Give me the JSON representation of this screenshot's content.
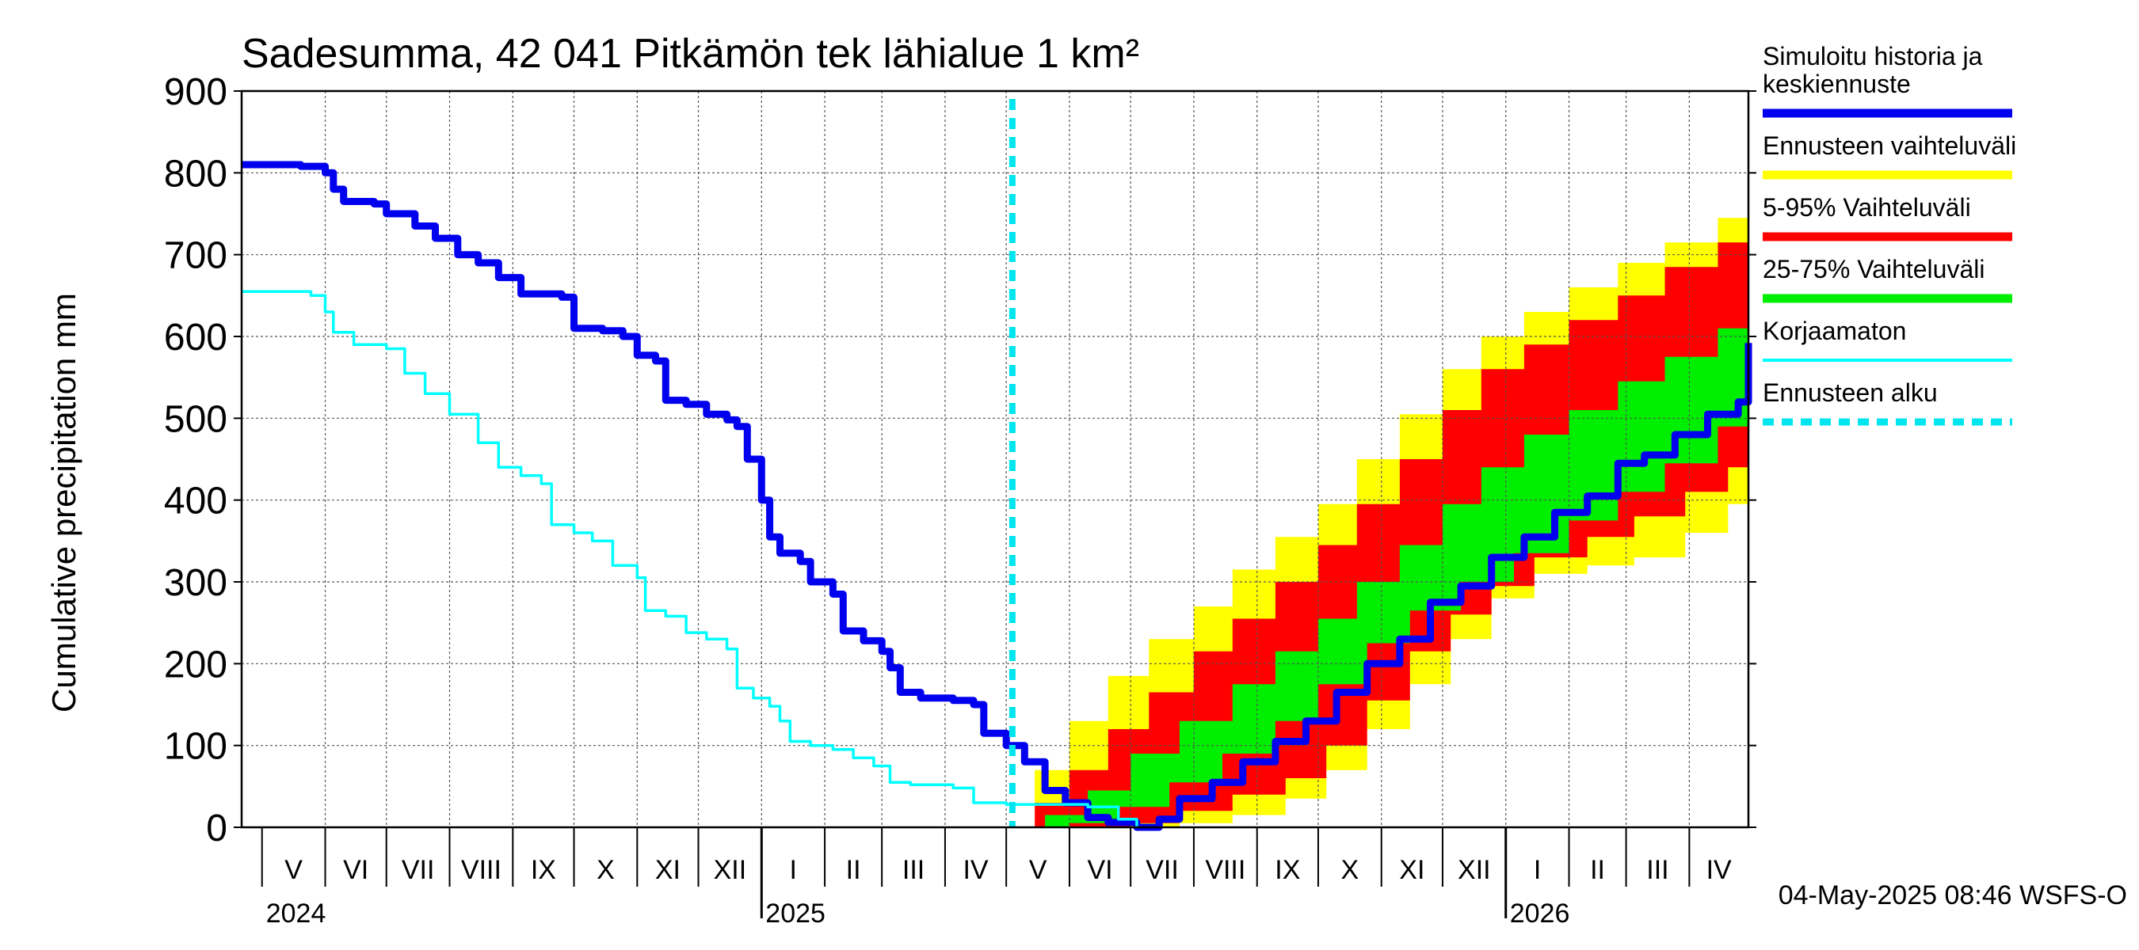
{
  "chart_data": {
    "type": "area",
    "title": "Sadesumma, 42 041 Pitkämön tek lähialue 1 km²",
    "ylabel": "Cumulative precipitation   mm",
    "xlabel": "",
    "ylim": [
      0,
      900
    ],
    "yticks": [
      0,
      100,
      200,
      300,
      400,
      500,
      600,
      700,
      800,
      900
    ],
    "grid": true,
    "legend_position": "right",
    "x_start": "2024-04-21",
    "x_end": "2026-04-30",
    "forecast_start": "2025-05-04",
    "months": [
      {
        "label": "V",
        "start": "2024-05-01",
        "end": "2024-06-01"
      },
      {
        "label": "VI",
        "start": "2024-06-01",
        "end": "2024-07-01"
      },
      {
        "label": "VII",
        "start": "2024-07-01",
        "end": "2024-08-01"
      },
      {
        "label": "VIII",
        "start": "2024-08-01",
        "end": "2024-09-01"
      },
      {
        "label": "IX",
        "start": "2024-09-01",
        "end": "2024-10-01"
      },
      {
        "label": "X",
        "start": "2024-10-01",
        "end": "2024-11-01"
      },
      {
        "label": "XI",
        "start": "2024-11-01",
        "end": "2024-12-01"
      },
      {
        "label": "XII",
        "start": "2024-12-01",
        "end": "2025-01-01"
      },
      {
        "label": "I",
        "start": "2025-01-01",
        "end": "2025-02-01"
      },
      {
        "label": "II",
        "start": "2025-02-01",
        "end": "2025-03-01"
      },
      {
        "label": "III",
        "start": "2025-03-01",
        "end": "2025-04-01"
      },
      {
        "label": "IV",
        "start": "2025-04-01",
        "end": "2025-05-01"
      },
      {
        "label": "V",
        "start": "2025-05-01",
        "end": "2025-06-01"
      },
      {
        "label": "VI",
        "start": "2025-06-01",
        "end": "2025-07-01"
      },
      {
        "label": "VII",
        "start": "2025-07-01",
        "end": "2025-08-01"
      },
      {
        "label": "VIII",
        "start": "2025-08-01",
        "end": "2025-09-01"
      },
      {
        "label": "IX",
        "start": "2025-09-01",
        "end": "2025-10-01"
      },
      {
        "label": "X",
        "start": "2025-10-01",
        "end": "2025-11-01"
      },
      {
        "label": "XI",
        "start": "2025-11-01",
        "end": "2025-12-01"
      },
      {
        "label": "XII",
        "start": "2025-12-01",
        "end": "2026-01-01"
      },
      {
        "label": "I",
        "start": "2026-01-01",
        "end": "2026-02-01"
      },
      {
        "label": "II",
        "start": "2026-02-01",
        "end": "2026-03-01"
      },
      {
        "label": "III",
        "start": "2026-03-01",
        "end": "2026-04-01"
      },
      {
        "label": "IV",
        "start": "2026-04-01",
        "end": "2026-05-01"
      }
    ],
    "years": [
      {
        "label": "2024",
        "date": "2024-05-01"
      },
      {
        "label": "2025",
        "date": "2025-01-01"
      },
      {
        "label": "2026",
        "date": "2026-01-01"
      }
    ],
    "timestamp": "04-May-2025 08:46 WSFS-O",
    "series": [
      {
        "name": "Simuloitu historia ja keskiennuste",
        "color": "#0000ee",
        "points": [
          [
            "2024-04-21",
            810
          ],
          [
            "2024-05-20",
            808
          ],
          [
            "2024-06-01",
            800
          ],
          [
            "2024-06-05",
            780
          ],
          [
            "2024-06-10",
            765
          ],
          [
            "2024-06-25",
            762
          ],
          [
            "2024-07-01",
            750
          ],
          [
            "2024-07-15",
            735
          ],
          [
            "2024-07-25",
            720
          ],
          [
            "2024-08-05",
            700
          ],
          [
            "2024-08-15",
            690
          ],
          [
            "2024-08-25",
            672
          ],
          [
            "2024-09-05",
            652
          ],
          [
            "2024-09-25",
            648
          ],
          [
            "2024-10-01",
            610
          ],
          [
            "2024-10-15",
            607
          ],
          [
            "2024-10-25",
            600
          ],
          [
            "2024-11-01",
            577
          ],
          [
            "2024-11-10",
            570
          ],
          [
            "2024-11-15",
            522
          ],
          [
            "2024-11-25",
            517
          ],
          [
            "2024-12-05",
            505
          ],
          [
            "2024-12-15",
            498
          ],
          [
            "2024-12-20",
            490
          ],
          [
            "2024-12-25",
            450
          ],
          [
            "2025-01-01",
            400
          ],
          [
            "2025-01-05",
            355
          ],
          [
            "2025-01-10",
            335
          ],
          [
            "2025-01-20",
            325
          ],
          [
            "2025-01-25",
            300
          ],
          [
            "2025-02-05",
            285
          ],
          [
            "2025-02-10",
            240
          ],
          [
            "2025-02-20",
            228
          ],
          [
            "2025-03-01",
            215
          ],
          [
            "2025-03-05",
            195
          ],
          [
            "2025-03-10",
            165
          ],
          [
            "2025-03-20",
            158
          ],
          [
            "2025-04-05",
            155
          ],
          [
            "2025-04-15",
            150
          ],
          [
            "2025-04-20",
            115
          ],
          [
            "2025-05-01",
            100
          ],
          [
            "2025-05-10",
            80
          ],
          [
            "2025-05-20",
            45
          ],
          [
            "2025-05-30",
            30
          ],
          [
            "2025-06-10",
            12
          ],
          [
            "2025-06-20",
            6
          ],
          [
            "2025-07-04",
            0
          ],
          [
            "2025-07-15",
            10
          ],
          [
            "2025-07-25",
            35
          ],
          [
            "2025-08-10",
            55
          ],
          [
            "2025-08-25",
            80
          ],
          [
            "2025-09-10",
            105
          ],
          [
            "2025-09-25",
            130
          ],
          [
            "2025-10-10",
            165
          ],
          [
            "2025-10-25",
            200
          ],
          [
            "2025-11-10",
            230
          ],
          [
            "2025-11-25",
            275
          ],
          [
            "2025-12-10",
            295
          ],
          [
            "2025-12-25",
            330
          ],
          [
            "2026-01-10",
            355
          ],
          [
            "2026-01-25",
            385
          ],
          [
            "2026-02-10",
            405
          ],
          [
            "2026-02-25",
            445
          ],
          [
            "2026-03-10",
            455
          ],
          [
            "2026-03-25",
            480
          ],
          [
            "2026-04-10",
            505
          ],
          [
            "2026-04-25",
            520
          ],
          [
            "2026-05-10",
            530
          ],
          [
            "2026-05-25",
            545
          ],
          [
            "2026-06-10",
            565
          ],
          [
            "2026-06-25",
            580
          ],
          [
            "2026-07-10",
            592
          ]
        ]
      },
      {
        "name": "Korjaamaton",
        "color": "#00ffff",
        "points": [
          [
            "2024-04-21",
            655
          ],
          [
            "2024-05-25",
            650
          ],
          [
            "2024-06-01",
            630
          ],
          [
            "2024-06-05",
            605
          ],
          [
            "2024-06-15",
            590
          ],
          [
            "2024-07-01",
            585
          ],
          [
            "2024-07-10",
            555
          ],
          [
            "2024-07-20",
            530
          ],
          [
            "2024-08-01",
            505
          ],
          [
            "2024-08-15",
            470
          ],
          [
            "2024-08-25",
            440
          ],
          [
            "2024-09-05",
            430
          ],
          [
            "2024-09-15",
            420
          ],
          [
            "2024-09-20",
            370
          ],
          [
            "2024-10-01",
            360
          ],
          [
            "2024-10-10",
            350
          ],
          [
            "2024-10-20",
            320
          ],
          [
            "2024-11-01",
            305
          ],
          [
            "2024-11-05",
            265
          ],
          [
            "2024-11-15",
            258
          ],
          [
            "2024-11-25",
            238
          ],
          [
            "2024-12-05",
            230
          ],
          [
            "2024-12-15",
            218
          ],
          [
            "2024-12-20",
            170
          ],
          [
            "2024-12-28",
            158
          ],
          [
            "2025-01-05",
            148
          ],
          [
            "2025-01-10",
            130
          ],
          [
            "2025-01-15",
            105
          ],
          [
            "2025-01-25",
            100
          ],
          [
            "2025-02-05",
            95
          ],
          [
            "2025-02-15",
            85
          ],
          [
            "2025-02-25",
            75
          ],
          [
            "2025-03-05",
            55
          ],
          [
            "2025-03-15",
            52
          ],
          [
            "2025-04-05",
            48
          ],
          [
            "2025-04-15",
            30
          ],
          [
            "2025-05-01",
            28
          ],
          [
            "2025-06-10",
            25
          ],
          [
            "2025-06-25",
            10
          ],
          [
            "2025-07-04",
            0
          ]
        ]
      }
    ],
    "bands": [
      {
        "name": "Ennusteen vaihteluväli",
        "color": "#ffff00",
        "upper": [
          [
            "2025-05-04",
            0
          ],
          [
            "2025-05-15",
            70
          ],
          [
            "2025-06-01",
            130
          ],
          [
            "2025-06-20",
            185
          ],
          [
            "2025-07-10",
            230
          ],
          [
            "2025-08-01",
            270
          ],
          [
            "2025-08-20",
            315
          ],
          [
            "2025-09-10",
            355
          ],
          [
            "2025-10-01",
            395
          ],
          [
            "2025-10-20",
            450
          ],
          [
            "2025-11-10",
            505
          ],
          [
            "2025-12-01",
            560
          ],
          [
            "2025-12-20",
            600
          ],
          [
            "2026-01-10",
            630
          ],
          [
            "2026-02-01",
            660
          ],
          [
            "2026-02-25",
            690
          ],
          [
            "2026-03-20",
            715
          ],
          [
            "2026-04-15",
            745
          ],
          [
            "2026-04-30",
            765
          ]
        ],
        "lower": [
          [
            "2025-05-04",
            0
          ],
          [
            "2025-06-01",
            0
          ],
          [
            "2025-07-01",
            0
          ],
          [
            "2025-07-25",
            5
          ],
          [
            "2025-08-20",
            15
          ],
          [
            "2025-09-15",
            35
          ],
          [
            "2025-10-05",
            70
          ],
          [
            "2025-10-25",
            120
          ],
          [
            "2025-11-15",
            175
          ],
          [
            "2025-12-05",
            230
          ],
          [
            "2025-12-25",
            280
          ],
          [
            "2026-01-15",
            310
          ],
          [
            "2026-02-10",
            320
          ],
          [
            "2026-03-05",
            330
          ],
          [
            "2026-03-30",
            360
          ],
          [
            "2026-04-20",
            395
          ],
          [
            "2026-04-30",
            420
          ]
        ]
      },
      {
        "name": "5-95% Vaihteluväli",
        "color": "#ff0000",
        "upper": [
          [
            "2025-05-04",
            0
          ],
          [
            "2025-05-15",
            30
          ],
          [
            "2025-06-01",
            70
          ],
          [
            "2025-06-20",
            120
          ],
          [
            "2025-07-10",
            165
          ],
          [
            "2025-08-01",
            215
          ],
          [
            "2025-08-20",
            255
          ],
          [
            "2025-09-10",
            300
          ],
          [
            "2025-10-01",
            345
          ],
          [
            "2025-10-20",
            395
          ],
          [
            "2025-11-10",
            450
          ],
          [
            "2025-12-01",
            510
          ],
          [
            "2025-12-20",
            560
          ],
          [
            "2026-01-10",
            590
          ],
          [
            "2026-02-01",
            620
          ],
          [
            "2026-02-25",
            650
          ],
          [
            "2026-03-20",
            685
          ],
          [
            "2026-04-15",
            715
          ],
          [
            "2026-04-30",
            755
          ]
        ],
        "lower": [
          [
            "2025-05-04",
            0
          ],
          [
            "2025-06-01",
            0
          ],
          [
            "2025-07-01",
            5
          ],
          [
            "2025-07-25",
            20
          ],
          [
            "2025-08-20",
            40
          ],
          [
            "2025-09-15",
            60
          ],
          [
            "2025-10-05",
            100
          ],
          [
            "2025-10-25",
            155
          ],
          [
            "2025-11-15",
            215
          ],
          [
            "2025-12-05",
            260
          ],
          [
            "2025-12-25",
            295
          ],
          [
            "2026-01-15",
            330
          ],
          [
            "2026-02-10",
            355
          ],
          [
            "2026-03-05",
            380
          ],
          [
            "2026-03-30",
            410
          ],
          [
            "2026-04-20",
            440
          ],
          [
            "2026-04-30",
            460
          ]
        ]
      },
      {
        "name": "25-75% Vaihteluväli",
        "color": "#00ee00",
        "upper": [
          [
            "2025-05-04",
            0
          ],
          [
            "2025-05-20",
            15
          ],
          [
            "2025-06-10",
            45
          ],
          [
            "2025-07-01",
            90
          ],
          [
            "2025-07-25",
            130
          ],
          [
            "2025-08-20",
            175
          ],
          [
            "2025-09-10",
            215
          ],
          [
            "2025-10-01",
            255
          ],
          [
            "2025-10-20",
            300
          ],
          [
            "2025-11-10",
            345
          ],
          [
            "2025-12-01",
            395
          ],
          [
            "2025-12-20",
            440
          ],
          [
            "2026-01-10",
            480
          ],
          [
            "2026-02-01",
            510
          ],
          [
            "2026-02-25",
            545
          ],
          [
            "2026-03-20",
            575
          ],
          [
            "2026-04-15",
            610
          ],
          [
            "2026-04-30",
            650
          ]
        ],
        "lower": [
          [
            "2025-05-04",
            0
          ],
          [
            "2025-06-01",
            5
          ],
          [
            "2025-06-25",
            25
          ],
          [
            "2025-07-20",
            55
          ],
          [
            "2025-08-15",
            90
          ],
          [
            "2025-09-10",
            130
          ],
          [
            "2025-10-01",
            175
          ],
          [
            "2025-10-25",
            225
          ],
          [
            "2025-11-15",
            265
          ],
          [
            "2025-12-10",
            300
          ],
          [
            "2026-01-05",
            335
          ],
          [
            "2026-02-01",
            375
          ],
          [
            "2026-02-25",
            410
          ],
          [
            "2026-03-20",
            445
          ],
          [
            "2026-04-15",
            490
          ],
          [
            "2026-04-30",
            530
          ]
        ]
      }
    ],
    "legend": [
      {
        "label": "Simuloitu historia ja keskiennuste",
        "lines": [
          "Simuloitu historia ja",
          "keskiennuste"
        ],
        "color": "#0000ee",
        "style": "solid"
      },
      {
        "label": "Ennusteen vaihteluväli",
        "lines": [
          "Ennusteen vaihteluväli"
        ],
        "color": "#ffff00",
        "style": "solid"
      },
      {
        "label": "5-95% Vaihteluväli",
        "lines": [
          "5-95% Vaihteluväli"
        ],
        "color": "#ff0000",
        "style": "solid"
      },
      {
        "label": "25-75% Vaihteluväli",
        "lines": [
          "25-75% Vaihteluväli"
        ],
        "color": "#00ee00",
        "style": "solid"
      },
      {
        "label": "Korjaamaton",
        "lines": [
          "Korjaamaton"
        ],
        "color": "#00ffff",
        "style": "thin"
      },
      {
        "label": "Ennusteen alku",
        "lines": [
          "Ennusteen alku"
        ],
        "color": "#00e5ee",
        "style": "dashed"
      }
    ]
  }
}
